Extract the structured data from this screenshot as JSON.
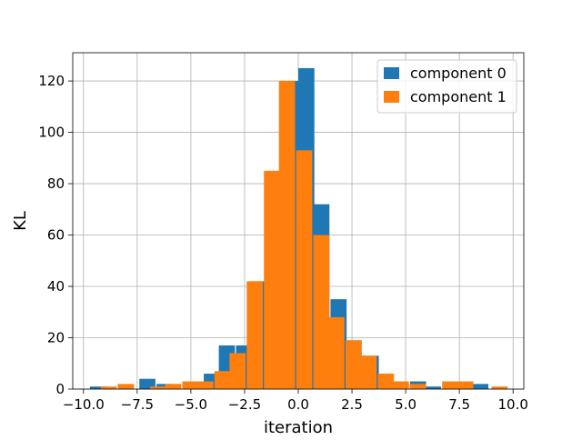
{
  "chart_data": {
    "type": "bar",
    "title": "",
    "xlabel": "iteration",
    "ylabel": "KL",
    "xlim": [
      -10.5,
      10.5
    ],
    "ylim": [
      0,
      131
    ],
    "grid": true,
    "legend_position": "top-right",
    "x_ticks": [
      -10.0,
      -7.5,
      -5.0,
      -2.5,
      0.0,
      2.5,
      5.0,
      7.5,
      10.0
    ],
    "x_tick_labels": [
      "−10.0",
      "−7.5",
      "−5.0",
      "−2.5",
      "0.0",
      "2.5",
      "5.0",
      "7.5",
      "10.0"
    ],
    "y_ticks": [
      0,
      20,
      40,
      60,
      80,
      100,
      120
    ],
    "y_tick_labels": [
      "0",
      "20",
      "40",
      "60",
      "80",
      "100",
      "120"
    ],
    "bin_width": 0.75,
    "series": [
      {
        "name": "component 0",
        "color": "#1f77b4",
        "bins": [
          {
            "x0": -9.7,
            "value": 1
          },
          {
            "x0": -7.4,
            "value": 4
          },
          {
            "x0": -6.6,
            "value": 2
          },
          {
            "x0": -4.4,
            "value": 6
          },
          {
            "x0": -3.7,
            "value": 17
          },
          {
            "x0": -2.9,
            "value": 17
          },
          {
            "x0": -2.2,
            "value": 42
          },
          {
            "x0": -1.5,
            "value": 85
          },
          {
            "x0": -0.7,
            "value": 120
          },
          {
            "x0": 0.0,
            "value": 125
          },
          {
            "x0": 0.7,
            "value": 72
          },
          {
            "x0": 1.5,
            "value": 35
          },
          {
            "x0": 2.2,
            "value": 19
          },
          {
            "x0": 3.0,
            "value": 13
          },
          {
            "x0": 3.7,
            "value": 6
          },
          {
            "x0": 4.4,
            "value": 2
          },
          {
            "x0": 5.2,
            "value": 3
          },
          {
            "x0": 5.9,
            "value": 1
          },
          {
            "x0": 8.1,
            "value": 2
          }
        ]
      },
      {
        "name": "component 1",
        "color": "#ff7f0e",
        "bins": [
          {
            "x0": -9.2,
            "value": 1
          },
          {
            "x0": -8.4,
            "value": 2
          },
          {
            "x0": -6.9,
            "value": 1
          },
          {
            "x0": -6.2,
            "value": 2
          },
          {
            "x0": -5.4,
            "value": 3
          },
          {
            "x0": -4.7,
            "value": 3
          },
          {
            "x0": -3.9,
            "value": 7
          },
          {
            "x0": -3.2,
            "value": 14
          },
          {
            "x0": -2.4,
            "value": 42
          },
          {
            "x0": -1.6,
            "value": 85
          },
          {
            "x0": -0.9,
            "value": 120
          },
          {
            "x0": -0.1,
            "value": 93
          },
          {
            "x0": 0.7,
            "value": 60
          },
          {
            "x0": 1.4,
            "value": 28
          },
          {
            "x0": 2.2,
            "value": 19
          },
          {
            "x0": 2.9,
            "value": 13
          },
          {
            "x0": 3.7,
            "value": 6
          },
          {
            "x0": 4.4,
            "value": 3
          },
          {
            "x0": 5.2,
            "value": 2
          },
          {
            "x0": 6.7,
            "value": 3
          },
          {
            "x0": 7.4,
            "value": 3
          },
          {
            "x0": 9.0,
            "value": 1
          }
        ]
      }
    ]
  }
}
